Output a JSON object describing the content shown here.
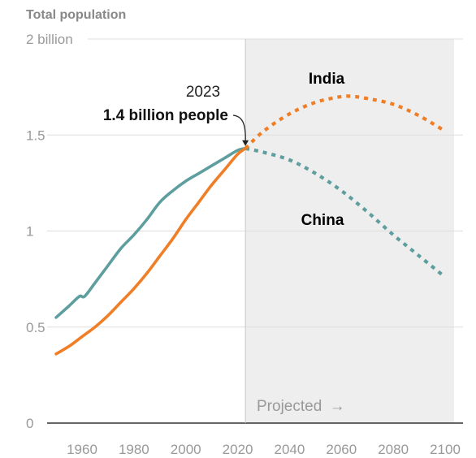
{
  "chart_data": {
    "type": "line",
    "title": "Total population",
    "xlabel": "",
    "ylabel": "",
    "xlim": [
      1950,
      2100
    ],
    "ylim": [
      0,
      2
    ],
    "x_ticks": [
      1960,
      1980,
      2000,
      2020,
      2040,
      2060,
      2080,
      2100
    ],
    "x_tick_labels": [
      "1960",
      "1980",
      "2000",
      "2020",
      "2040",
      "2060",
      "2080",
      "2100"
    ],
    "y_ticks": [
      0,
      0.5,
      1,
      1.5,
      2
    ],
    "y_tick_labels": [
      "0",
      "0.5",
      "1",
      "1.5",
      "2 billion"
    ],
    "grid": "horizontal",
    "projected_from": 2023,
    "projected_label": "Projected",
    "projected_arrow": "→",
    "annotation": {
      "year": "2023",
      "text": "1.4 billion people",
      "x": 2023,
      "y": 1.43
    },
    "colors": {
      "India": "#f07e26",
      "China": "#5e9e9e",
      "shade": "#eeeeee"
    },
    "series": [
      {
        "name": "India",
        "historical": {
          "x": [
            1950,
            1955,
            1960,
            1965,
            1970,
            1975,
            1980,
            1985,
            1990,
            1995,
            2000,
            2005,
            2010,
            2015,
            2020,
            2023
          ],
          "y": [
            0.36,
            0.4,
            0.45,
            0.5,
            0.56,
            0.63,
            0.7,
            0.78,
            0.87,
            0.96,
            1.06,
            1.15,
            1.24,
            1.32,
            1.4,
            1.43
          ]
        },
        "projected": {
          "x": [
            2023,
            2030,
            2040,
            2050,
            2060,
            2065,
            2070,
            2080,
            2090,
            2100
          ],
          "y": [
            1.43,
            1.52,
            1.61,
            1.67,
            1.7,
            1.7,
            1.69,
            1.66,
            1.6,
            1.52
          ]
        }
      },
      {
        "name": "China",
        "historical": {
          "x": [
            1950,
            1955,
            1959,
            1961,
            1965,
            1970,
            1975,
            1980,
            1985,
            1990,
            1995,
            2000,
            2005,
            2010,
            2015,
            2020,
            2023
          ],
          "y": [
            0.55,
            0.61,
            0.66,
            0.66,
            0.73,
            0.82,
            0.91,
            0.98,
            1.06,
            1.15,
            1.21,
            1.26,
            1.3,
            1.34,
            1.38,
            1.42,
            1.43
          ]
        },
        "projected": {
          "x": [
            2023,
            2030,
            2040,
            2050,
            2060,
            2070,
            2080,
            2090,
            2100
          ],
          "y": [
            1.43,
            1.41,
            1.37,
            1.3,
            1.21,
            1.1,
            0.98,
            0.87,
            0.76
          ]
        }
      }
    ]
  }
}
